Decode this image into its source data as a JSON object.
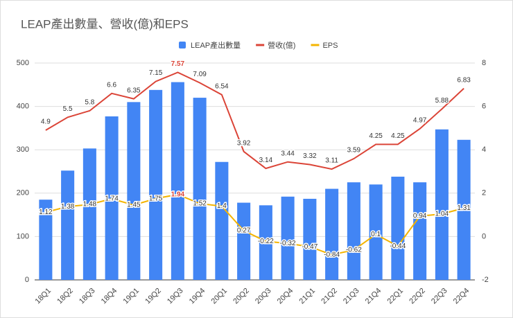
{
  "chart_data": {
    "type": "combo",
    "title": "LEAP產出數量、營收(億)和EPS",
    "categories": [
      "18Q1",
      "18Q2",
      "18Q3",
      "18Q4",
      "19Q1",
      "19Q2",
      "19Q3",
      "19Q4",
      "20Q1",
      "20Q2",
      "20Q3",
      "20Q4",
      "21Q1",
      "21Q2",
      "21Q3",
      "21Q4",
      "22Q1",
      "22Q2",
      "22Q3",
      "22Q4"
    ],
    "series": [
      {
        "name": "LEAP產出數量",
        "type": "bar",
        "color": "#4285f4",
        "values": [
          185,
          252,
          303,
          377,
          410,
          438,
          456,
          420,
          272,
          178,
          172,
          192,
          187,
          210,
          225,
          220,
          238,
          225,
          347,
          323
        ]
      },
      {
        "name": "營收(億)",
        "type": "line",
        "axis": "y2",
        "color": "#db4437",
        "values": [
          4.9,
          5.5,
          5.8,
          6.6,
          6.35,
          7.15,
          7.57,
          7.09,
          6.54,
          3.92,
          3.14,
          3.44,
          3.32,
          3.11,
          3.59,
          4.25,
          4.25,
          4.97,
          5.88,
          6.83
        ]
      },
      {
        "name": "EPS",
        "type": "line",
        "axis": "y2",
        "color": "#f4b400",
        "values": [
          1.12,
          1.38,
          1.48,
          1.74,
          1.45,
          1.75,
          1.94,
          1.52,
          1.4,
          0.27,
          -0.22,
          -0.32,
          -0.47,
          -0.84,
          -0.62,
          0.1,
          -0.44,
          0.94,
          1.04,
          1.31
        ]
      }
    ],
    "ylim": [
      0,
      500
    ],
    "yticks": [
      0,
      100,
      200,
      300,
      400,
      500
    ],
    "y2lim": [
      -2,
      8
    ],
    "y2ticks": [
      -2,
      0,
      2,
      4,
      6,
      8
    ],
    "grid": true,
    "legend": "top"
  }
}
